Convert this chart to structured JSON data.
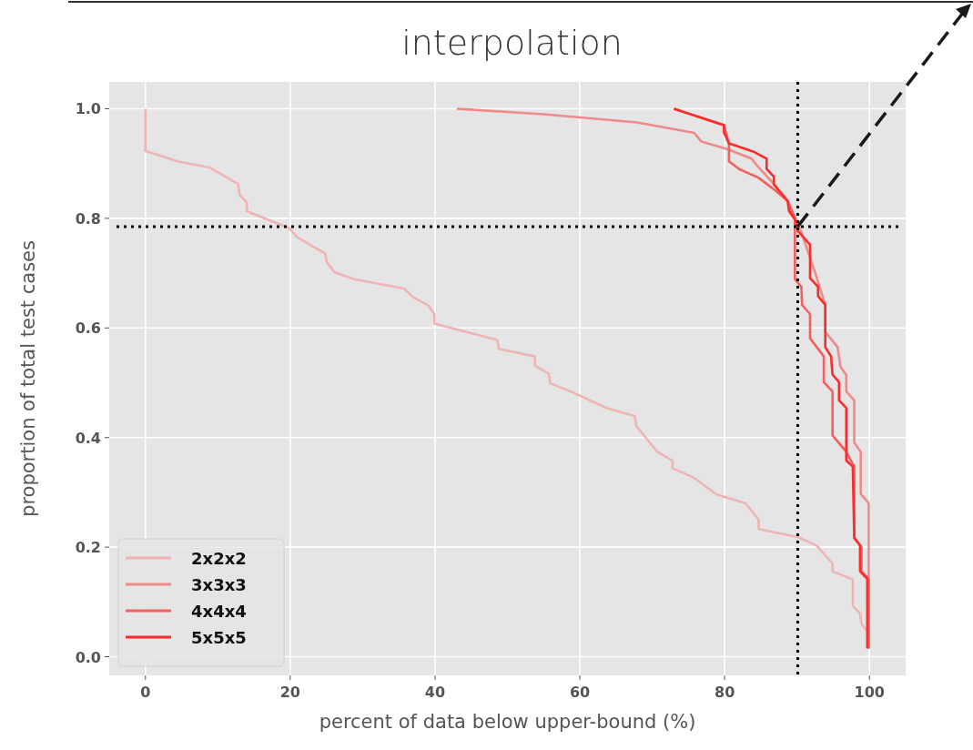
{
  "chart_data": {
    "type": "line",
    "title": "interpolation",
    "xlabel": "percent of data below upper-bound (%)",
    "ylabel": "proportion of total test cases",
    "xlim": [
      -5,
      105
    ],
    "ylim": [
      -0.034,
      1.049
    ],
    "xticks": [
      0,
      20,
      40,
      60,
      80,
      100
    ],
    "yticks": [
      {
        "value": 0,
        "label": "0.0"
      },
      {
        "value": 0.2,
        "label": "0.2"
      },
      {
        "value": 0.4,
        "label": "0.4"
      },
      {
        "value": 0.6,
        "label": "0.6"
      },
      {
        "value": 0.8,
        "label": "0.8"
      },
      {
        "value": 1,
        "label": "1.0"
      }
    ],
    "grid": true,
    "legend": "bottom left",
    "line_style": "solid",
    "ref_lines": [
      {
        "axis": "y",
        "value": 0.785,
        "label": null,
        "color": "#000000",
        "line_style": "dotted"
      },
      {
        "axis": "x",
        "value": 90.1,
        "label": null,
        "color": "#000000",
        "line_style": "dotted"
      }
    ],
    "series": [
      {
        "name": "2x2x2",
        "color": "#efb4b4",
        "x": [
          0,
          0,
          4.4,
          8.8,
          12.8,
          13.0,
          14.0,
          14.0,
          19.9,
          20.9,
          24.8,
          25.1,
          26.1,
          28.8,
          35.7,
          37.0,
          39.0,
          39.9,
          39.9,
          48.6,
          48.8,
          53.8,
          53.8,
          55.7,
          55.9,
          59.1,
          63.7,
          67.6,
          67.8,
          70.7,
          72.8,
          72.8,
          75.7,
          78.9,
          82.9,
          84.7,
          84.7,
          90.2,
          92.7,
          94.9,
          94.9,
          97.7,
          97.7,
          98.7,
          98.9,
          99.7
        ],
        "values": [
          1.0,
          0.923,
          0.904,
          0.893,
          0.863,
          0.843,
          0.829,
          0.813,
          0.782,
          0.766,
          0.736,
          0.719,
          0.702,
          0.689,
          0.672,
          0.656,
          0.642,
          0.625,
          0.608,
          0.578,
          0.562,
          0.548,
          0.531,
          0.517,
          0.499,
          0.482,
          0.454,
          0.439,
          0.421,
          0.374,
          0.358,
          0.344,
          0.327,
          0.296,
          0.28,
          0.25,
          0.233,
          0.218,
          0.203,
          0.17,
          0.156,
          0.141,
          0.093,
          0.079,
          0.06,
          0.046
        ]
      },
      {
        "name": "3x3x3",
        "color": "#f08a8a",
        "x": [
          43,
          55,
          67.9,
          75.8,
          76.8,
          80.4,
          83.7,
          84.7,
          87,
          88.7,
          89.7,
          90.6,
          92.0,
          92.6,
          93.9,
          93.9,
          95.6,
          96.0,
          96.8,
          96.8,
          97.9,
          97.9,
          98.8,
          98.8,
          99.9,
          99.9
        ],
        "values": [
          1.0,
          0.99,
          0.975,
          0.956,
          0.94,
          0.926,
          0.909,
          0.893,
          0.86,
          0.83,
          0.8,
          0.775,
          0.72,
          0.697,
          0.642,
          0.593,
          0.565,
          0.529,
          0.514,
          0.484,
          0.468,
          0.391,
          0.374,
          0.297,
          0.28,
          0.015
        ]
      },
      {
        "name": "4x4x4",
        "color": "#f45f5f",
        "x": [
          73,
          79.9,
          80.6,
          80.6,
          82,
          84.7,
          87,
          88.7,
          89.7,
          89.7,
          90.6,
          90.7,
          91.8,
          91.8,
          93.7,
          93.7,
          94.9,
          94.9,
          96.8,
          97.9,
          97.9,
          98.9,
          98.9,
          99.9,
          99.9
        ],
        "values": [
          1.0,
          0.97,
          0.937,
          0.904,
          0.89,
          0.874,
          0.851,
          0.832,
          0.802,
          0.689,
          0.675,
          0.642,
          0.625,
          0.581,
          0.548,
          0.501,
          0.484,
          0.404,
          0.374,
          0.347,
          0.217,
          0.2,
          0.156,
          0.142,
          0.015
        ]
      },
      {
        "name": "5x5x5",
        "color": "#ff2a2a",
        "x": [
          73,
          79.9,
          79.9,
          80.6,
          84.1,
          85.8,
          85.8,
          86.8,
          86.8,
          88.7,
          88.9,
          89.9,
          90.1,
          91.8,
          91.8,
          92.9,
          92.9,
          93.9,
          93.9,
          94.7,
          94.9,
          95.8,
          95.8,
          96.8,
          96.8,
          97.7,
          97.9,
          98.7,
          98.7,
          99.7,
          99.7
        ],
        "values": [
          1.0,
          0.97,
          0.957,
          0.937,
          0.921,
          0.909,
          0.89,
          0.876,
          0.862,
          0.832,
          0.813,
          0.794,
          0.777,
          0.752,
          0.691,
          0.675,
          0.658,
          0.642,
          0.565,
          0.548,
          0.515,
          0.501,
          0.468,
          0.454,
          0.358,
          0.347,
          0.217,
          0.203,
          0.156,
          0.142,
          0.015
        ]
      }
    ]
  }
}
